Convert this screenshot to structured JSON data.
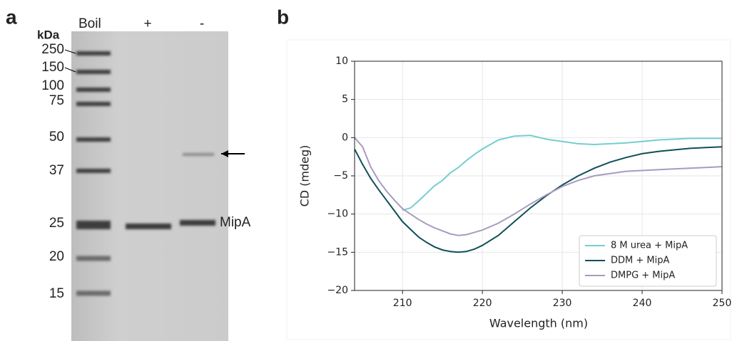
{
  "panel_a": {
    "label": "a",
    "header": "Boil",
    "lanes": [
      "+",
      "-"
    ],
    "unit": "kDa",
    "ladder": [
      250,
      150,
      100,
      75,
      50,
      37,
      25,
      20,
      15
    ],
    "band_label": "MipA"
  },
  "chart_data": {
    "type": "line",
    "panel_label": "b",
    "x_label": "Wavelength (nm)",
    "y_label": "CD (mdeg)",
    "x": [
      204,
      205,
      206,
      207,
      208,
      209,
      210,
      211,
      212,
      213,
      214,
      215,
      216,
      217,
      218,
      219,
      220,
      222,
      224,
      226,
      228,
      230,
      232,
      234,
      236,
      238,
      240,
      242,
      244,
      246,
      248,
      250
    ],
    "series": [
      {
        "name": "8 M urea + MipA",
        "color": "#76cdd0",
        "values": [
          null,
          null,
          null,
          null,
          null,
          null,
          -9.5,
          -9.2,
          -8.3,
          -7.3,
          -6.3,
          -5.6,
          -4.6,
          -3.9,
          -3,
          -2.2,
          -1.5,
          -0.3,
          0.2,
          0.3,
          -0.2,
          -0.5,
          -0.8,
          -0.9,
          -0.8,
          -0.7,
          -0.5,
          -0.3,
          -0.2,
          -0.1,
          -0.1,
          -0.1
        ]
      },
      {
        "name": "DDM + MipA",
        "color": "#0f4f5a",
        "values": [
          -1.5,
          -3.5,
          -5.3,
          -6.8,
          -8.2,
          -9.6,
          -11,
          -12,
          -13,
          -13.7,
          -14.3,
          -14.7,
          -14.9,
          -15,
          -14.9,
          -14.6,
          -14.1,
          -12.8,
          -11,
          -9.2,
          -7.6,
          -6.2,
          -5,
          -4,
          -3.2,
          -2.6,
          -2.1,
          -1.8,
          -1.6,
          -1.4,
          -1.3,
          -1.2
        ]
      },
      {
        "name": "DMPG + MipA",
        "color": "#a89bc0",
        "values": [
          0,
          -1.2,
          -3.8,
          -5.6,
          -7,
          -8.2,
          -9.3,
          -10,
          -10.7,
          -11.3,
          -11.8,
          -12.2,
          -12.6,
          -12.8,
          -12.7,
          -12.4,
          -12.1,
          -11.2,
          -10,
          -8.7,
          -7.5,
          -6.4,
          -5.6,
          -5,
          -4.7,
          -4.4,
          -4.3,
          -4.2,
          -4.1,
          -4,
          -3.9,
          -3.8
        ]
      }
    ],
    "xlim": [
      204,
      250
    ],
    "xticks": [
      210,
      220,
      230,
      240,
      250
    ],
    "ylim": [
      -20,
      10
    ],
    "yticks": [
      {
        "value": -20,
        "label": "−20"
      },
      {
        "value": -15,
        "label": "−15"
      },
      {
        "value": -10,
        "label": "−10"
      },
      {
        "value": -5,
        "label": "−5"
      },
      0,
      5,
      10
    ],
    "grid": true,
    "legend": "lower right"
  }
}
